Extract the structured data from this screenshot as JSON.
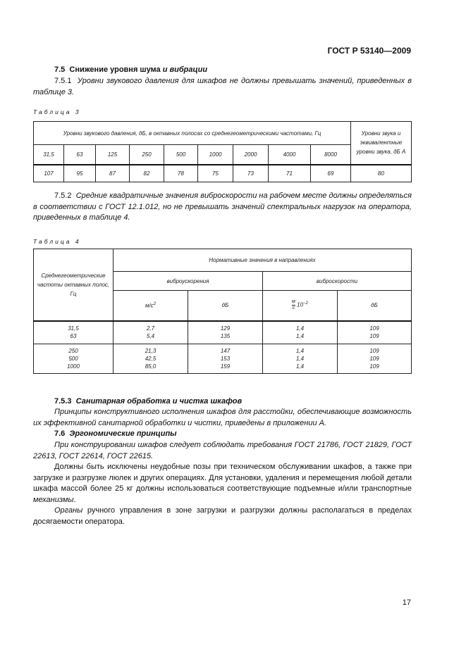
{
  "header": "ГОСТ Р 53140—2009",
  "s75": {
    "num": "7.5",
    "title_plain": "Снижение уровня шума",
    "title_italic": "и вибрации"
  },
  "p751": {
    "num": "7.5.1",
    "text": "Уровни звукового давления для шкафов не должны превышать значений, приведенных в таблице 3."
  },
  "table3": {
    "caption": "Таблица 3",
    "group_header": "Уровни звукового давления, дБ, в октавных полосах со среднегеометрическими частотами, Гц",
    "last_header": "Уровни звука и эквивалентные уровни звука, дБ А",
    "freqs": [
      "31,5",
      "63",
      "125",
      "250",
      "500",
      "1000",
      "2000",
      "4000",
      "8000"
    ],
    "values": [
      "107",
      "95",
      "87",
      "82",
      "78",
      "75",
      "73",
      "71",
      "69",
      "80"
    ]
  },
  "p752": {
    "num": "7.5.2",
    "text": "Средние квадратичные значения виброскорости на рабочем месте должны определяться в соответствии с ГОСТ 12.1.012, но не превышать значений спектральных нагрузок на оператора, приведенных в таблице 4."
  },
  "table4": {
    "caption": "Таблица 4",
    "col0": "Среднегеометрические частоты октавных полос, Гц",
    "group": "Нормативные значения в направлениях",
    "sub1": "виброускорения",
    "sub2": "виброскорости",
    "u1": "м/с",
    "u1sup": "2",
    "u2": "дБ",
    "u3num": "м",
    "u3den": "с",
    "u3mult": "10",
    "u3sup": "−2",
    "u4": "дБ",
    "block1": {
      "freq": "31,5\n63",
      "a": "2,7\n5,4",
      "adb": "129\n135",
      "v": "1,4\n1,4",
      "vdb": "109\n109"
    },
    "block2": {
      "freq": "250\n500\n1000",
      "a": "21,3\n42,5\n85,0",
      "adb": "147\n153\n159",
      "v": "1,4\n1,4\n1,4",
      "vdb": "109\n109\n109"
    }
  },
  "s753": {
    "num": "7.5.3",
    "title": "Санитарная обработка и чистка шкафов",
    "text": "Принципы конструктивного исполнения шкафов для расстойки, обеспечивающие возможность их эффективной санитарной обработки и чистки, приведены в приложении А."
  },
  "s76": {
    "num": "7.6",
    "title": "Эргономические принципы",
    "p1": "При конструировании шкафов следует соблюдать требования ГОСТ 21786, ГОСТ 21829, ГОСТ 22613, ГОСТ 22614, ГОСТ 22615.",
    "p2": "Должны быть исключены неудобные позы при техническом обслуживании шкафов, а также при загрузке и разгрузке люлек и других операциях. Для установки, удаления и перемещения любой детали шкафа массой более 25 кг должны использоваться соответствующие подъемные и/или транспортные",
    "p2_end": "механизмы",
    "p3_italic": "Органы",
    "p3": " ручного управления в зоне загрузки и разгрузки должны располагаться в пределах досягаемости оператора."
  },
  "page_number": "17"
}
